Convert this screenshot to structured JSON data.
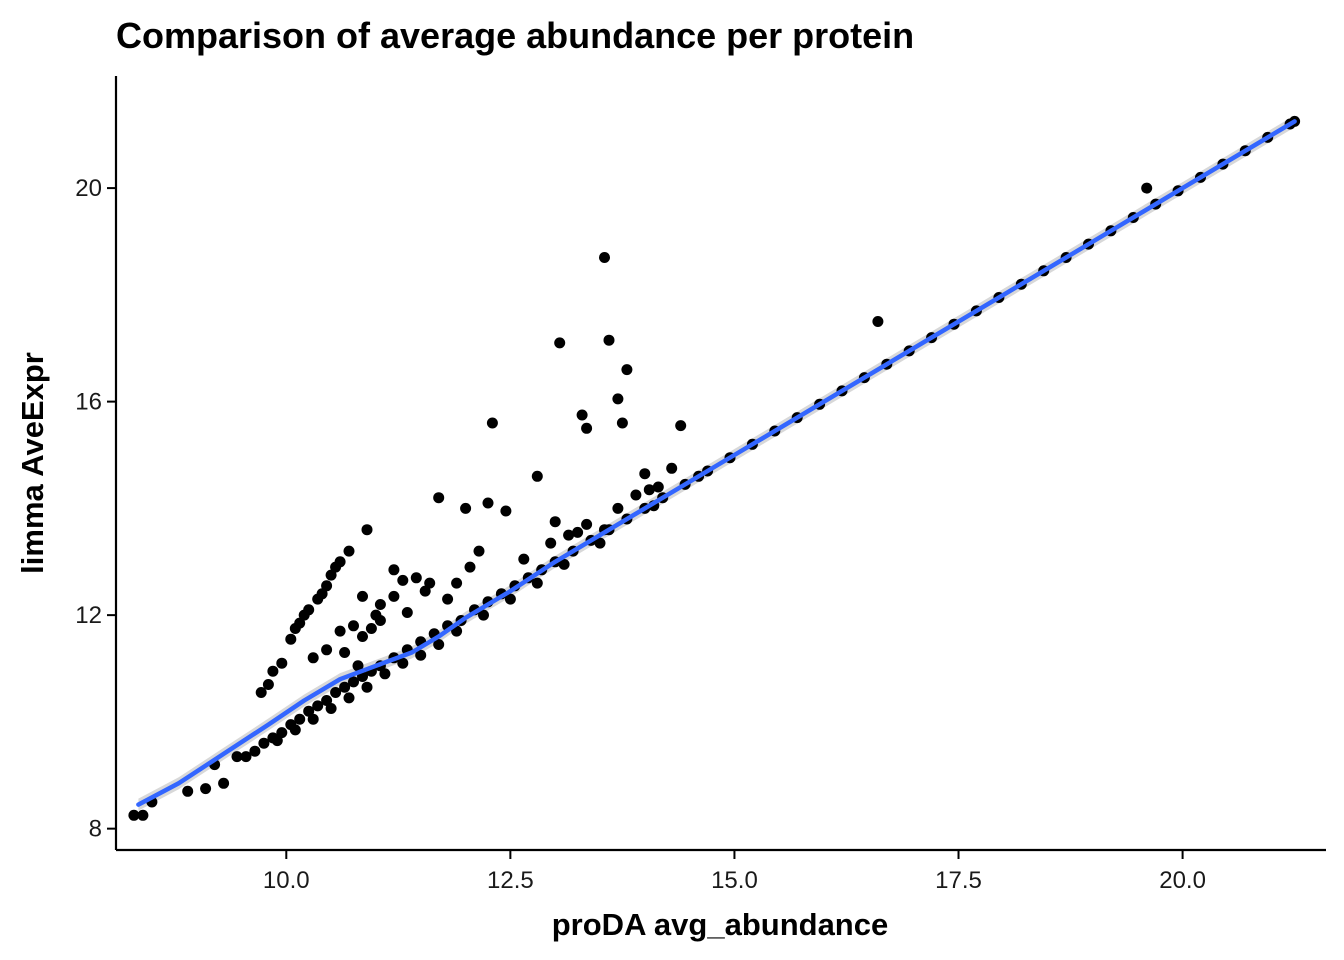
{
  "chart_data": {
    "type": "scatter",
    "title": "Comparison of average abundance per protein",
    "xlabel": "proDA avg_abundance",
    "ylabel": "limma AveExpr",
    "xlim": [
      8.1,
      21.6
    ],
    "ylim": [
      7.6,
      22.1
    ],
    "x_ticks": [
      10.0,
      12.5,
      15.0,
      17.5,
      20.0
    ],
    "x_tick_labels": [
      "10.0",
      "12.5",
      "15.0",
      "17.5",
      "20.0"
    ],
    "y_ticks": [
      8,
      12,
      16,
      20
    ],
    "y_tick_labels": [
      "8",
      "12",
      "16",
      "20"
    ],
    "grid": false,
    "legend": "none",
    "colors": {
      "points": "#000000",
      "smooth": "#3366ff",
      "ribbon": "#c8c8c8",
      "axis": "#000000"
    },
    "series": [
      {
        "kind": "points",
        "points": [
          [
            8.3,
            8.25
          ],
          [
            8.4,
            8.25
          ],
          [
            8.5,
            8.5
          ],
          [
            8.9,
            8.7
          ],
          [
            9.1,
            8.75
          ],
          [
            9.3,
            8.85
          ],
          [
            9.2,
            9.2
          ],
          [
            9.45,
            9.35
          ],
          [
            9.55,
            9.35
          ],
          [
            9.65,
            9.45
          ],
          [
            9.75,
            9.6
          ],
          [
            9.85,
            9.7
          ],
          [
            9.95,
            9.8
          ],
          [
            10.05,
            9.95
          ],
          [
            10.15,
            10.05
          ],
          [
            10.25,
            10.2
          ],
          [
            10.35,
            10.3
          ],
          [
            10.45,
            10.4
          ],
          [
            10.55,
            10.55
          ],
          [
            10.65,
            10.65
          ],
          [
            10.75,
            10.75
          ],
          [
            10.85,
            10.85
          ],
          [
            10.95,
            10.95
          ],
          [
            11.05,
            11.05
          ],
          [
            11.2,
            11.2
          ],
          [
            11.35,
            11.35
          ],
          [
            11.5,
            11.5
          ],
          [
            11.65,
            11.65
          ],
          [
            11.8,
            11.8
          ],
          [
            11.95,
            11.9
          ],
          [
            12.1,
            12.1
          ],
          [
            12.25,
            12.25
          ],
          [
            12.4,
            12.4
          ],
          [
            12.55,
            12.55
          ],
          [
            12.7,
            12.7
          ],
          [
            12.85,
            12.85
          ],
          [
            13.0,
            13.0
          ],
          [
            13.2,
            13.2
          ],
          [
            13.4,
            13.4
          ],
          [
            13.6,
            13.6
          ],
          [
            13.8,
            13.8
          ],
          [
            14.0,
            14.0
          ],
          [
            14.2,
            14.2
          ],
          [
            14.45,
            14.45
          ],
          [
            14.7,
            14.7
          ],
          [
            14.95,
            14.95
          ],
          [
            15.2,
            15.2
          ],
          [
            15.45,
            15.45
          ],
          [
            15.7,
            15.7
          ],
          [
            15.95,
            15.95
          ],
          [
            16.2,
            16.2
          ],
          [
            16.45,
            16.45
          ],
          [
            16.7,
            16.7
          ],
          [
            16.95,
            16.95
          ],
          [
            17.2,
            17.2
          ],
          [
            17.45,
            17.45
          ],
          [
            17.7,
            17.7
          ],
          [
            17.95,
            17.95
          ],
          [
            18.2,
            18.2
          ],
          [
            18.45,
            18.45
          ],
          [
            18.7,
            18.7
          ],
          [
            18.95,
            18.95
          ],
          [
            19.2,
            19.2
          ],
          [
            19.45,
            19.45
          ],
          [
            19.7,
            19.7
          ],
          [
            19.95,
            19.95
          ],
          [
            20.2,
            20.2
          ],
          [
            20.45,
            20.45
          ],
          [
            20.7,
            20.7
          ],
          [
            20.95,
            20.95
          ],
          [
            21.2,
            21.2
          ],
          [
            21.25,
            21.25
          ],
          [
            9.9,
            9.65
          ],
          [
            10.1,
            9.85
          ],
          [
            10.3,
            10.05
          ],
          [
            10.5,
            10.25
          ],
          [
            10.7,
            10.45
          ],
          [
            10.9,
            10.65
          ],
          [
            11.1,
            10.9
          ],
          [
            11.3,
            11.1
          ],
          [
            11.5,
            11.25
          ],
          [
            11.7,
            11.45
          ],
          [
            11.9,
            11.7
          ],
          [
            12.2,
            12.0
          ],
          [
            12.5,
            12.3
          ],
          [
            12.8,
            12.6
          ],
          [
            13.1,
            12.95
          ],
          [
            13.5,
            13.35
          ],
          [
            14.1,
            14.05
          ],
          [
            14.6,
            14.6
          ],
          [
            9.72,
            10.55
          ],
          [
            9.8,
            10.7
          ],
          [
            9.85,
            10.95
          ],
          [
            9.95,
            11.1
          ],
          [
            10.05,
            11.55
          ],
          [
            10.1,
            11.75
          ],
          [
            10.2,
            12.0
          ],
          [
            10.25,
            12.1
          ],
          [
            10.35,
            12.3
          ],
          [
            10.45,
            12.55
          ],
          [
            10.5,
            12.75
          ],
          [
            10.6,
            13.0
          ],
          [
            10.7,
            13.2
          ],
          [
            10.4,
            12.4
          ],
          [
            10.55,
            12.9
          ],
          [
            10.15,
            11.85
          ],
          [
            10.9,
            13.6
          ],
          [
            11.05,
            12.2
          ],
          [
            11.2,
            12.35
          ],
          [
            11.3,
            12.65
          ],
          [
            11.45,
            12.7
          ],
          [
            11.6,
            12.6
          ],
          [
            11.8,
            12.3
          ],
          [
            11.9,
            12.6
          ],
          [
            12.05,
            12.9
          ],
          [
            12.15,
            13.2
          ],
          [
            11.2,
            12.85
          ],
          [
            11.55,
            12.45
          ],
          [
            12.0,
            14.0
          ],
          [
            12.25,
            14.1
          ],
          [
            11.7,
            14.2
          ],
          [
            12.45,
            13.95
          ],
          [
            12.8,
            14.6
          ],
          [
            13.0,
            13.75
          ],
          [
            13.15,
            13.5
          ],
          [
            13.35,
            13.7
          ],
          [
            13.55,
            13.6
          ],
          [
            13.7,
            14.0
          ],
          [
            13.9,
            14.25
          ],
          [
            14.05,
            14.35
          ],
          [
            14.3,
            14.75
          ],
          [
            14.0,
            14.65
          ],
          [
            14.15,
            14.4
          ],
          [
            12.3,
            15.6
          ],
          [
            13.05,
            17.1
          ],
          [
            13.3,
            15.75
          ],
          [
            13.35,
            15.5
          ],
          [
            13.55,
            18.7
          ],
          [
            13.6,
            17.15
          ],
          [
            13.7,
            16.05
          ],
          [
            13.8,
            16.6
          ],
          [
            13.75,
            15.6
          ],
          [
            14.4,
            15.55
          ],
          [
            16.6,
            17.5
          ],
          [
            19.6,
            20.0
          ],
          [
            10.85,
            11.6
          ],
          [
            11.05,
            11.9
          ],
          [
            10.65,
            11.3
          ],
          [
            10.8,
            11.05
          ],
          [
            11.35,
            12.05
          ],
          [
            10.95,
            11.75
          ],
          [
            12.65,
            13.05
          ],
          [
            12.95,
            13.35
          ],
          [
            13.25,
            13.55
          ],
          [
            10.85,
            12.35
          ],
          [
            11.0,
            12.0
          ],
          [
            10.6,
            11.7
          ],
          [
            10.75,
            11.8
          ],
          [
            10.3,
            11.2
          ],
          [
            10.45,
            11.35
          ]
        ]
      },
      {
        "kind": "smooth",
        "points": [
          [
            8.35,
            8.45
          ],
          [
            8.8,
            8.85
          ],
          [
            9.3,
            9.4
          ],
          [
            9.8,
            9.95
          ],
          [
            10.2,
            10.4
          ],
          [
            10.6,
            10.8
          ],
          [
            11.0,
            11.05
          ],
          [
            11.4,
            11.3
          ],
          [
            11.7,
            11.6
          ],
          [
            12.0,
            11.95
          ],
          [
            12.5,
            12.45
          ],
          [
            13.0,
            13.0
          ],
          [
            14.0,
            14.0
          ],
          [
            15.0,
            15.0
          ],
          [
            16.0,
            16.0
          ],
          [
            17.0,
            17.0
          ],
          [
            18.0,
            18.0
          ],
          [
            19.0,
            19.0
          ],
          [
            20.0,
            20.0
          ],
          [
            21.25,
            21.25
          ]
        ]
      }
    ]
  }
}
